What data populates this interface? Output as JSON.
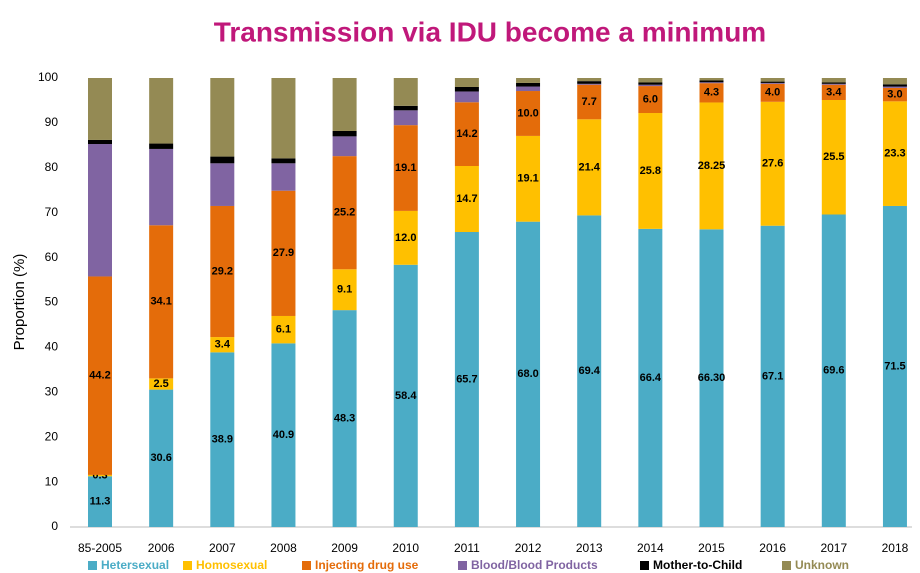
{
  "chart_data": {
    "type": "stacked_bar",
    "title": "Transmission via IDU become a minimum",
    "y_label": "Proportion (%)",
    "categories": [
      "85-2005",
      "2006",
      "2007",
      "2008",
      "2009",
      "2010",
      "2011",
      "2012",
      "2013",
      "2014",
      "2015",
      "2016",
      "2017",
      "2018"
    ],
    "series": [
      {
        "name": "Hetersexual",
        "color": "#4bacc6",
        "values": [
          11.3,
          30.6,
          38.9,
          40.9,
          48.3,
          58.4,
          65.7,
          68.0,
          69.4,
          66.4,
          66.3,
          67.1,
          69.6,
          71.5
        ],
        "value_labels": [
          "11.3",
          "30.6",
          "38.9",
          "40.9",
          "48.3",
          "58.4",
          "65.7",
          "68.0",
          "69.4",
          "66.4",
          "66.30",
          "67.1",
          "69.6",
          "71.5"
        ]
      },
      {
        "name": "Homosexual",
        "color": "#ffc000",
        "values": [
          0.3,
          2.5,
          3.4,
          6.1,
          9.1,
          12.0,
          14.7,
          19.1,
          21.4,
          25.8,
          28.25,
          27.6,
          25.5,
          23.3
        ],
        "value_labels": [
          "0.3",
          "2.5",
          "3.4",
          "6.1",
          "9.1",
          "12.0",
          "14.7",
          "19.1",
          "21.4",
          "25.8",
          "28.25",
          "27.6",
          "25.5",
          "23.3"
        ]
      },
      {
        "name": "Injecting drug use",
        "color": "#e46c0a",
        "values": [
          44.2,
          34.1,
          29.2,
          27.9,
          25.2,
          19.1,
          14.2,
          10.0,
          7.7,
          6.0,
          4.3,
          4.0,
          3.4,
          3.0
        ],
        "value_labels": [
          "44.2",
          "34.1",
          "29.2",
          "27.9",
          "25.2",
          "19.1",
          "14.2",
          "10.0",
          "7.7",
          "6.0",
          "4.3",
          "4.0",
          "3.4",
          "3.0"
        ]
      },
      {
        "name": "Blood/Blood Products",
        "color": "#8064a2",
        "values": [
          29.5,
          17.0,
          9.5,
          6.1,
          4.4,
          3.3,
          2.4,
          1.0,
          0.2,
          0.3,
          0.2,
          0.2,
          0.2,
          0.3
        ]
      },
      {
        "name": "Mother-to-Child",
        "color": "#000000",
        "values": [
          0.9,
          1.2,
          1.5,
          1.1,
          1.2,
          1.0,
          1.0,
          0.8,
          0.6,
          0.5,
          0.4,
          0.3,
          0.3,
          0.5
        ]
      },
      {
        "name": "Unknown",
        "color": "#948a54",
        "values": [
          13.8,
          14.6,
          17.5,
          17.9,
          11.8,
          6.2,
          2.0,
          1.1,
          0.7,
          1.0,
          0.55,
          0.8,
          1.0,
          1.4
        ]
      }
    ],
    "ylim": [
      0,
      100
    ],
    "yticks": [
      0,
      10,
      20,
      30,
      40,
      50,
      60,
      70,
      80,
      90,
      100
    ],
    "grid": false,
    "legend": "bottom"
  }
}
